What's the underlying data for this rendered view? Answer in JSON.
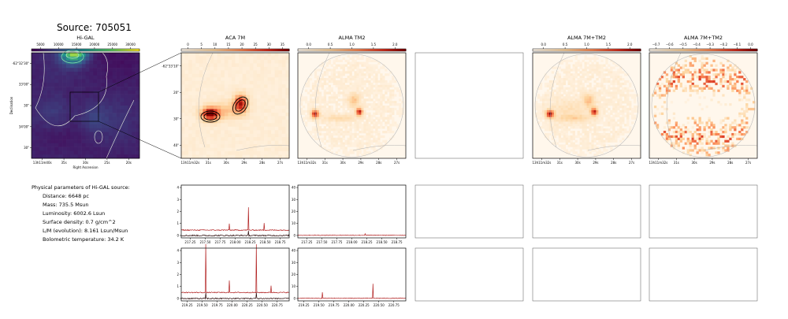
{
  "source_title": "Source: 705051",
  "params": {
    "header": "Physical parameters of Hi-GAL source:",
    "lines": [
      "Distance: 6648 pc",
      "Mass: 735.5 Msun",
      "Luminosity: 6002.6 Lsun",
      "Surface density: 0.7 g/cm^2",
      "L/M (evolution): 8.161 Lsun/Msun",
      "Bolometric temperature: 34.2 K"
    ]
  },
  "chart_data": [
    {
      "id": "higal",
      "type": "heatmap",
      "title": "Hi-GAL",
      "xlabel": "Right Ascension",
      "ylabel": "Declination",
      "colorbar_ticks": [
        "5000",
        "10000",
        "15000",
        "20000",
        "25000",
        "30000"
      ],
      "colorbar_range": [
        0,
        33000
      ],
      "xticks": [
        "13h11m40s",
        "35s",
        "30s",
        "25s",
        "20s"
      ],
      "yticks": [
        "-62°32'30\"",
        "33'00\"",
        "30\"",
        "34'00\"",
        "30\""
      ]
    },
    {
      "id": "aca7m",
      "type": "heatmap",
      "title": "ACA 7M",
      "colorbar_ticks": [
        "0",
        "5",
        "10",
        "15",
        "20",
        "25",
        "30",
        "35"
      ],
      "colorbar_range": [
        0,
        38
      ],
      "xticks": [
        "13h11m32s",
        "31s",
        "30s",
        "29s",
        "28s",
        "27s"
      ],
      "yticks": [
        "-62°33'10\"",
        "20\"",
        "30\"",
        "40\""
      ]
    },
    {
      "id": "tm2",
      "type": "heatmap",
      "title": "ALMA TM2",
      "colorbar_ticks": [
        "0.0",
        "0.5",
        "1.0",
        "1.5",
        "2.0"
      ],
      "colorbar_range": [
        0,
        2.3
      ],
      "xticks": [
        "13h11m32s",
        "31s",
        "30s",
        "29s",
        "28s",
        "27s"
      ]
    },
    {
      "id": "combo",
      "type": "heatmap",
      "title": "ALMA 7M+TM2",
      "colorbar_ticks": [
        "0.0",
        "0.5",
        "1.0",
        "1.5",
        "2.0"
      ],
      "colorbar_range": [
        0,
        2.3
      ],
      "xticks": [
        "13h11m32s",
        "31s",
        "30s",
        "29s",
        "28s",
        "27s"
      ]
    },
    {
      "id": "resid",
      "type": "heatmap",
      "title": "ALMA 7M+TM2",
      "colorbar_ticks": [
        "−0.7",
        "−0.6",
        "−0.5",
        "−0.4",
        "−0.3",
        "−0.2",
        "−0.1",
        "0.0"
      ],
      "colorbar_range": [
        -0.75,
        0.0
      ],
      "xticks": [
        "13h11m32s",
        "31s",
        "30s",
        "29s",
        "28s",
        "27s"
      ]
    },
    {
      "id": "spec_7m_a",
      "type": "line",
      "xlim": [
        217.1,
        218.9
      ],
      "ylim": [
        -0.2,
        4.2
      ],
      "xticks": [
        "217.25",
        "217.50",
        "217.75",
        "218.00",
        "218.25",
        "218.50",
        "218.75"
      ],
      "yticks": [
        "0",
        "1",
        "2",
        "3",
        "4"
      ],
      "series": [
        {
          "baseline": 0.45,
          "noise": 0.04,
          "peaks": [
            [
              218.22,
              1.9
            ],
            [
              218.48,
              0.6
            ],
            [
              217.9,
              0.55
            ]
          ]
        },
        {
          "baseline": 0.0,
          "noise": 0.05,
          "peaks": [
            [
              218.22,
              0.35
            ]
          ]
        }
      ]
    },
    {
      "id": "spec_tm2_a",
      "type": "line",
      "xlim": [
        217.1,
        218.9
      ],
      "ylim": [
        -2,
        42
      ],
      "xticks": [
        "217.25",
        "217.50",
        "217.75",
        "218.00",
        "218.25",
        "218.50",
        "218.75"
      ],
      "yticks": [
        "0",
        "10",
        "20",
        "30",
        "40"
      ],
      "series": [
        {
          "baseline": 0.2,
          "noise": 0.25,
          "peaks": [
            [
              218.22,
              1.4
            ]
          ]
        }
      ]
    },
    {
      "id": "spec_7m_b",
      "type": "line",
      "xlim": [
        219.15,
        220.95
      ],
      "ylim": [
        -0.2,
        4.2
      ],
      "xticks": [
        "219.25",
        "219.50",
        "219.75",
        "220.00",
        "220.25",
        "220.50",
        "220.75"
      ],
      "yticks": [
        "0",
        "1",
        "2",
        "3",
        "4"
      ],
      "series": [
        {
          "baseline": 0.5,
          "noise": 0.04,
          "peaks": [
            [
              219.56,
              4.0
            ],
            [
              219.95,
              1.0
            ],
            [
              220.4,
              4.0
            ],
            [
              220.65,
              0.55
            ]
          ]
        },
        {
          "baseline": 0.0,
          "noise": 0.05,
          "peaks": [
            [
              219.56,
              0.5
            ],
            [
              220.4,
              0.5
            ]
          ]
        }
      ]
    },
    {
      "id": "spec_tm2_b",
      "type": "line",
      "xlim": [
        219.15,
        220.95
      ],
      "ylim": [
        -2,
        42
      ],
      "xticks": [
        "219.25",
        "219.50",
        "219.75",
        "220.00",
        "220.25",
        "220.50",
        "220.75"
      ],
      "yticks": [
        "0",
        "10",
        "20",
        "30",
        "40"
      ],
      "series": [
        {
          "baseline": 0.2,
          "noise": 0.25,
          "peaks": [
            [
              219.56,
              5.0
            ],
            [
              220.4,
              12.0
            ]
          ]
        }
      ]
    }
  ]
}
